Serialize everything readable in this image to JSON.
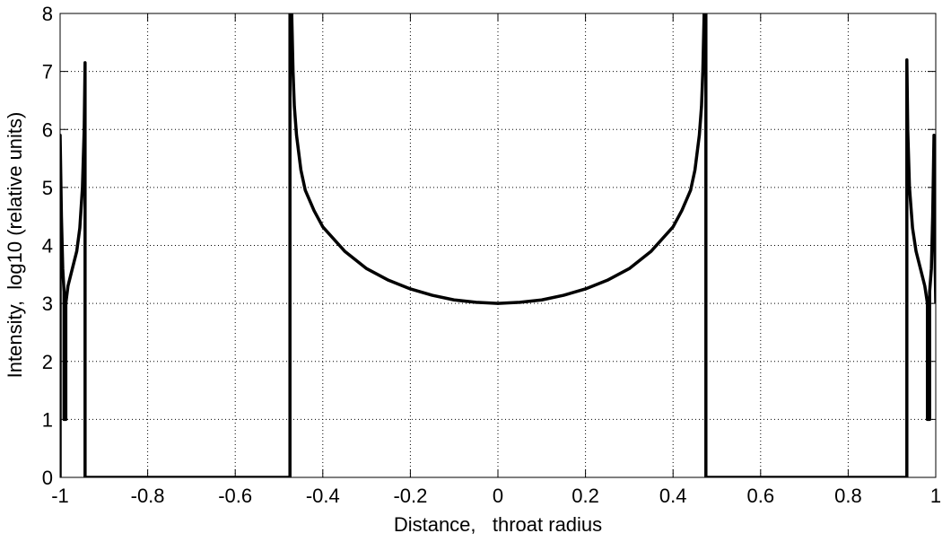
{
  "chart_data": {
    "type": "line",
    "xlabel": "Distance,   throat radius",
    "ylabel": "Intensity,  log10 (relative units)",
    "x": [
      -1,
      -1,
      -0.997,
      -0.994,
      -0.991,
      -0.991,
      -0.987,
      -0.987,
      -0.982,
      -0.972,
      -0.962,
      -0.955,
      -0.949,
      -0.945,
      -0.943,
      -0.943,
      -0.475,
      -0.475,
      -0.471,
      -0.468,
      -0.465,
      -0.46,
      -0.45,
      -0.44,
      -0.42,
      -0.4,
      -0.35,
      -0.3,
      -0.25,
      -0.2,
      -0.15,
      -0.1,
      -0.05,
      0,
      0.05,
      0.1,
      0.15,
      0.2,
      0.25,
      0.3,
      0.35,
      0.4,
      0.42,
      0.44,
      0.45,
      0.46,
      0.465,
      0.468,
      0.471,
      0.475,
      0.475,
      0.934,
      0.934,
      0.936,
      0.94,
      0.947,
      0.955,
      0.965,
      0.975,
      0.981,
      0.981,
      0.986,
      0.986,
      0.99,
      0.993,
      0.996,
      0.998,
      1
    ],
    "values": [
      0,
      5.9,
      4.5,
      3.6,
      3.2,
      1.0,
      1.0,
      3.0,
      3.3,
      3.6,
      3.9,
      4.3,
      5.0,
      6.0,
      7.15,
      0,
      0,
      8,
      8,
      7.0,
      6.4,
      5.9,
      5.3,
      4.95,
      4.6,
      4.32,
      3.9,
      3.6,
      3.4,
      3.25,
      3.14,
      3.06,
      3.02,
      3.0,
      3.02,
      3.06,
      3.14,
      3.25,
      3.4,
      3.6,
      3.9,
      4.32,
      4.6,
      4.95,
      5.3,
      5.9,
      6.4,
      7.0,
      8,
      8,
      0,
      0,
      7.2,
      6.0,
      5.0,
      4.3,
      3.9,
      3.6,
      3.3,
      3.0,
      1.0,
      1.0,
      3.2,
      3.6,
      4.5,
      5.9,
      4.0,
      3.0
    ],
    "color": "#000000",
    "xlim": [
      -1,
      1
    ],
    "xticks": [
      -1,
      -0.8,
      -0.6,
      -0.4,
      -0.2,
      0,
      0.2,
      0.4,
      0.6,
      0.8,
      1
    ],
    "ylim": [
      0,
      8
    ],
    "yticks": [
      0,
      1,
      2,
      3,
      4,
      5,
      6,
      7,
      8
    ],
    "grid": true
  }
}
